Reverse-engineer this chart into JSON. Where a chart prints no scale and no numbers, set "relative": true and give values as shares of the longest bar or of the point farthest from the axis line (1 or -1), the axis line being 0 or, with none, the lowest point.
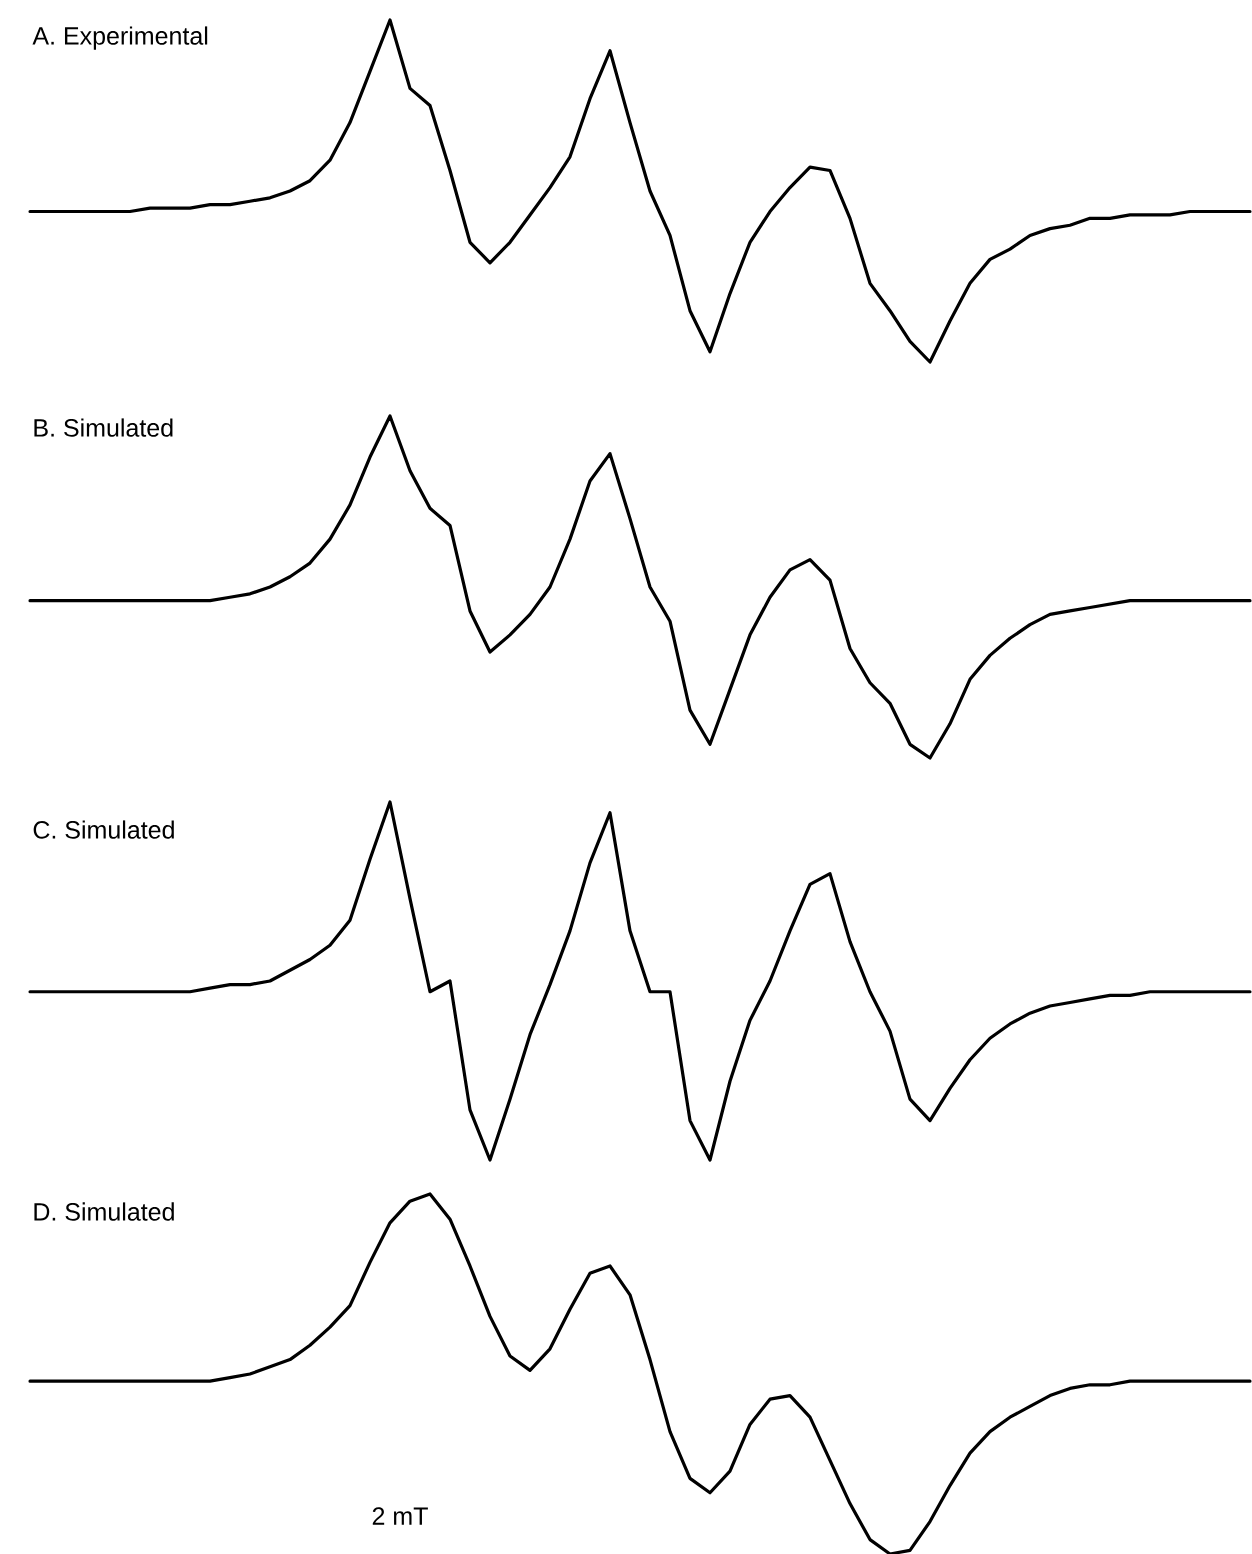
{
  "chart_data": [
    {
      "type": "line",
      "title": "A. Experimental",
      "relative": true,
      "categories": [
        null,
        null,
        null,
        null,
        null,
        null,
        null,
        null,
        null,
        null,
        null,
        null,
        null,
        null,
        null,
        null,
        null,
        null,
        null,
        null,
        null,
        null,
        null,
        null,
        null,
        null,
        null,
        null,
        null,
        null,
        null,
        null,
        null,
        null,
        null,
        null,
        null,
        null,
        null,
        null,
        null,
        null,
        null,
        null,
        null,
        null,
        null,
        null,
        null,
        null,
        null,
        null,
        null,
        null,
        null,
        null,
        null,
        null,
        null,
        null,
        null,
        null
      ],
      "series": [
        {
          "color": "#000000",
          "values": [
            0.44,
            0.44,
            0.44,
            0.44,
            0.44,
            0.44,
            0.45,
            0.45,
            0.45,
            0.46,
            0.46,
            0.47,
            0.48,
            0.5,
            0.53,
            0.59,
            0.7,
            0.85,
            1,
            0.8,
            0.75,
            0.56,
            0.35,
            0.29,
            0.35,
            0.43,
            0.51,
            0.6,
            0.77,
            0.91,
            0.7,
            0.5,
            0.37,
            0.15,
            0.03,
            0.2,
            0.35,
            0.44,
            0.51,
            0.57,
            0.56,
            0.42,
            0.23,
            0.15,
            0.06,
            0,
            0.12,
            0.23,
            0.3,
            0.33,
            0.37,
            0.39,
            0.4,
            0.42,
            0.42,
            0.43,
            0.43,
            0.43,
            0.44,
            0.44,
            0.44,
            0.44
          ]
        }
      ]
    },
    {
      "type": "line",
      "title": "B. Simulated",
      "relative": true,
      "categories": [
        null,
        null,
        null,
        null,
        null,
        null,
        null,
        null,
        null,
        null,
        null,
        null,
        null,
        null,
        null,
        null,
        null,
        null,
        null,
        null,
        null,
        null,
        null,
        null,
        null,
        null,
        null,
        null,
        null,
        null,
        null,
        null,
        null,
        null,
        null,
        null,
        null,
        null,
        null,
        null,
        null,
        null,
        null,
        null,
        null,
        null,
        null,
        null,
        null,
        null,
        null,
        null,
        null,
        null,
        null,
        null,
        null,
        null,
        null,
        null,
        null,
        null
      ],
      "series": [
        {
          "color": "#000000",
          "values": [
            0.46,
            0.46,
            0.46,
            0.46,
            0.46,
            0.46,
            0.46,
            0.46,
            0.46,
            0.46,
            0.47,
            0.48,
            0.5,
            0.53,
            0.57,
            0.64,
            0.74,
            0.88,
            1,
            0.84,
            0.73,
            0.68,
            0.43,
            0.31,
            0.36,
            0.42,
            0.5,
            0.64,
            0.81,
            0.89,
            0.7,
            0.5,
            0.4,
            0.14,
            0.04,
            0.2,
            0.36,
            0.47,
            0.55,
            0.58,
            0.52,
            0.32,
            0.22,
            0.16,
            0.04,
            0,
            0.1,
            0.23,
            0.3,
            0.35,
            0.39,
            0.42,
            0.43,
            0.44,
            0.45,
            0.46,
            0.46,
            0.46,
            0.46,
            0.46,
            0.46,
            0.46
          ]
        }
      ]
    },
    {
      "type": "line",
      "title": "C. Simulated",
      "relative": true,
      "categories": [
        null,
        null,
        null,
        null,
        null,
        null,
        null,
        null,
        null,
        null,
        null,
        null,
        null,
        null,
        null,
        null,
        null,
        null,
        null,
        null,
        null,
        null,
        null,
        null,
        null,
        null,
        null,
        null,
        null,
        null,
        null,
        null,
        null,
        null,
        null,
        null,
        null,
        null,
        null,
        null,
        null,
        null,
        null,
        null,
        null,
        null,
        null,
        null,
        null,
        null,
        null,
        null,
        null,
        null,
        null,
        null,
        null,
        null,
        null,
        null,
        null,
        null
      ],
      "series": [
        {
          "color": "#000000",
          "values": [
            0.47,
            0.47,
            0.47,
            0.47,
            0.47,
            0.47,
            0.47,
            0.47,
            0.47,
            0.48,
            0.49,
            0.49,
            0.5,
            0.53,
            0.56,
            0.6,
            0.67,
            0.84,
            1,
            0.73,
            0.47,
            0.5,
            0.14,
            0,
            0.17,
            0.35,
            0.49,
            0.64,
            0.83,
            0.97,
            0.64,
            0.47,
            0.47,
            0.11,
            0,
            0.22,
            0.39,
            0.5,
            0.64,
            0.77,
            0.8,
            0.61,
            0.47,
            0.36,
            0.17,
            0.11,
            0.2,
            0.28,
            0.34,
            0.38,
            0.41,
            0.43,
            0.44,
            0.45,
            0.46,
            0.46,
            0.47,
            0.47,
            0.47,
            0.47,
            0.47,
            0.47
          ]
        }
      ]
    },
    {
      "type": "line",
      "title": "D. Simulated",
      "relative": true,
      "annotations": [
        "2 mT"
      ],
      "categories": [
        null,
        null,
        null,
        null,
        null,
        null,
        null,
        null,
        null,
        null,
        null,
        null,
        null,
        null,
        null,
        null,
        null,
        null,
        null,
        null,
        null,
        null,
        null,
        null,
        null,
        null,
        null,
        null,
        null,
        null,
        null,
        null,
        null,
        null,
        null,
        null,
        null,
        null,
        null,
        null,
        null,
        null,
        null,
        null,
        null,
        null,
        null,
        null,
        null,
        null,
        null,
        null,
        null,
        null,
        null,
        null,
        null,
        null,
        null,
        null,
        null,
        null
      ],
      "series": [
        {
          "color": "#000000",
          "values": [
            0.48,
            0.48,
            0.48,
            0.48,
            0.48,
            0.48,
            0.48,
            0.48,
            0.48,
            0.48,
            0.49,
            0.5,
            0.52,
            0.54,
            0.58,
            0.63,
            0.69,
            0.81,
            0.92,
            0.98,
            1,
            0.93,
            0.8,
            0.66,
            0.55,
            0.51,
            0.57,
            0.68,
            0.78,
            0.8,
            0.72,
            0.54,
            0.34,
            0.21,
            0.17,
            0.23,
            0.36,
            0.43,
            0.44,
            0.38,
            0.26,
            0.14,
            0.04,
            0,
            0.01,
            0.09,
            0.19,
            0.28,
            0.34,
            0.38,
            0.41,
            0.44,
            0.46,
            0.47,
            0.47,
            0.48,
            0.48,
            0.48,
            0.48,
            0.48,
            0.48,
            0.48
          ]
        }
      ]
    }
  ]
}
